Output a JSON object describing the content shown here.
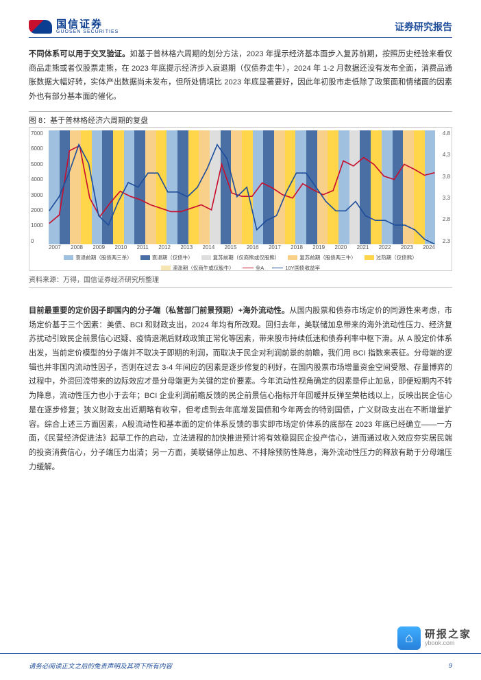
{
  "header": {
    "logo_zh": "国信证券",
    "logo_en": "GUOSEN SECURITIES",
    "report_title": "证券研究报告"
  },
  "para1": {
    "lead": "不同体系可以用于交叉验证。",
    "rest": "如基于普林格六周期的划分方法，2023 年提示经济基本面步入复苏前期，按照历史经验来看仅商品走熊或者仅股票走熊，在 2023 年底提示经济步入衰退期（仅债券走牛），2024 年 1-2 月数据还没有发布全面，消费品通胀数据大幅好转，实体产出数据尚未发布，但所处情境比 2023 年底显著要好，因此年初股市走低除了政策面和情绪面的因素外也有部分基本面的催化。"
  },
  "figure": {
    "caption": "图 8：基于普林格经济六周期的复盘",
    "source": "资料来源：万得，国信证券经济研究所整理",
    "left_axis": {
      "ticks": [
        "7000",
        "6000",
        "5000",
        "4000",
        "3000",
        "2000",
        "1000",
        "0"
      ],
      "min": 0,
      "max": 7000
    },
    "right_axis": {
      "ticks": [
        "4.8",
        "4.3",
        "3.8",
        "3.3",
        "2.8",
        "2.3"
      ],
      "min": 2.3,
      "max": 4.8
    },
    "x_axis": {
      "labels": [
        "2007",
        "2008",
        "2009",
        "2010",
        "2011",
        "2012",
        "2013",
        "2014",
        "2015",
        "2016",
        "2017",
        "2018",
        "2019",
        "2020",
        "2021",
        "2022",
        "2023",
        "2024"
      ]
    },
    "regimes": [
      {
        "c": "#9fc0de"
      },
      {
        "c": "#4a6fa5"
      },
      {
        "c": "#f8d08a"
      },
      {
        "c": "#ffd54a"
      },
      {
        "c": "#9fc0de"
      },
      {
        "c": "#4a6fa5"
      },
      {
        "c": "#ffd54a"
      },
      {
        "c": "#9fc0de"
      },
      {
        "c": "#4a6fa5"
      },
      {
        "c": "#f8d08a"
      },
      {
        "c": "#ffd54a"
      },
      {
        "c": "#9fc0de"
      },
      {
        "c": "#4a6fa5"
      },
      {
        "c": "#ffd54a"
      },
      {
        "c": "#f8d08a"
      },
      {
        "c": "#dedede"
      },
      {
        "c": "#4a6fa5"
      },
      {
        "c": "#f8d08a"
      },
      {
        "c": "#ffd54a"
      },
      {
        "c": "#9fc0de"
      },
      {
        "c": "#4a6fa5"
      },
      {
        "c": "#f8d08a"
      },
      {
        "c": "#ffd54a"
      },
      {
        "c": "#9fc0de"
      },
      {
        "c": "#4a6fa5"
      },
      {
        "c": "#f8d08a"
      },
      {
        "c": "#ffd54a"
      },
      {
        "c": "#9fc0de"
      },
      {
        "c": "#dedede"
      },
      {
        "c": "#4a6fa5"
      },
      {
        "c": "#ffd54a"
      },
      {
        "c": "#9fc0de"
      },
      {
        "c": "#4a6fa5"
      },
      {
        "c": "#f8d08a"
      },
      {
        "c": "#ffd54a"
      },
      {
        "c": "#9fc0de"
      }
    ],
    "series_A": {
      "color": "#c8102e",
      "points": [
        1500,
        2000,
        5800,
        6100,
        3000,
        1900,
        2700,
        3400,
        3100,
        2900,
        2600,
        2400,
        2200,
        2200,
        2400,
        2600,
        2300,
        5000,
        3300,
        3100,
        3100,
        3900,
        3600,
        3200,
        3000,
        3850,
        3500,
        3200,
        3450,
        5200,
        4900,
        5400,
        5000,
        4300,
        4100,
        5000,
        4700,
        4350,
        4500
      ]
    },
    "series_10Y": {
      "color": "#1f4e9b",
      "points": [
        3.1,
        3.4,
        3.9,
        4.5,
        4.1,
        3.0,
        2.8,
        3.3,
        3.7,
        3.6,
        3.9,
        3.9,
        3.5,
        3.5,
        3.4,
        3.6,
        4.0,
        4.5,
        4.2,
        3.4,
        3.6,
        2.7,
        2.9,
        3.0,
        3.5,
        3.9,
        3.9,
        3.6,
        3.3,
        3.1,
        3.1,
        3.3,
        3.0,
        2.9,
        2.9,
        2.8,
        2.8,
        2.7,
        2.5,
        2.4
      ]
    },
    "legend": [
      {
        "type": "sw",
        "color": "#9fc0de",
        "label": "衰退前期（股债两三杀）"
      },
      {
        "type": "sw",
        "color": "#4a6fa5",
        "label": "衰退期（仅债牛）"
      },
      {
        "type": "sw",
        "color": "#dedede",
        "label": "复苏前期（仅商熊或仅股熊）"
      },
      {
        "type": "sw",
        "color": "#f8d08a",
        "label": "复苏前期（股债两三牛）"
      },
      {
        "type": "sw",
        "color": "#ffd54a",
        "label": "过热期（仅债熊）"
      },
      {
        "type": "sw",
        "color": "#f6e4b2",
        "label": "滞涨期（仅商牛或仅股牛）"
      },
      {
        "type": "ln",
        "color": "#c8102e",
        "label": "全A"
      },
      {
        "type": "ln",
        "color": "#1f4e9b",
        "label": "10Y国债收益率"
      }
    ]
  },
  "para2": {
    "lead": "目前最重要的定价因子即国内的分子端（私营部门前景预期）+海外流动性。",
    "rest": "从国内股票和债券市场定价的同源性来考虑，市场定价基于三个因素：美债、BCI 和财政支出，2024 年均有所改观。回归去年，美联储加息带来的海外流动性压力、经济复苏扰动引致民企前景信心迟疑、疫情退潮后财政政策正常化等因素，带来股市持续低迷和债券利率中枢下滑。从 A 股定价体系出发，当前定价模型的分子端并不取决于即期的利润，而取决于民企对利润前景的前瞻，我们用 BCI 指数来表征。分母端的逻辑也并非国内流动性因子，否则在过去 3-4 年间应的因素是逐步修复的利好，在国内股票市场增量资金空间受限、存量博弈的过程中，外资回流带来的边际效应才是分母端更为关键的定价要素。今年流动性视角确定的因素是停止加息，即便短期内不转为降息，流动性压力也小于去年；BCI 企业利润前瞻反馈的民企前景信心指标开年回暖并反弹至荣枯线以上，反映出民企信心是在逐步修复；狭义财政支出近期略有收窄，但考虑到去年底增发国债和今年两会的特别国债，广义财政支出在不断增量扩容。综合上述三方面因素，A股流动性和基本面的定价体系反馈的事实即市场定价体系的底部在 2023 年底已经确立——一方面，《民营经济促进法》起草工作的启动，立法进程的加快推进预计将有效稳固民企投产信心，进而通过收入效应夯实居民端的投资消费信心，分子端压力出清；另一方面，美联储停止加息、不排除预防性降息，海外流动性压力的释放有助于分母端压力缓解。"
  },
  "footer": {
    "disclaimer": "请务必阅读正文之后的免责声明及其项下所有内容",
    "page": "9"
  },
  "watermark": {
    "icon": "⌂",
    "zh": "研报之家",
    "en": "ybook.com"
  }
}
